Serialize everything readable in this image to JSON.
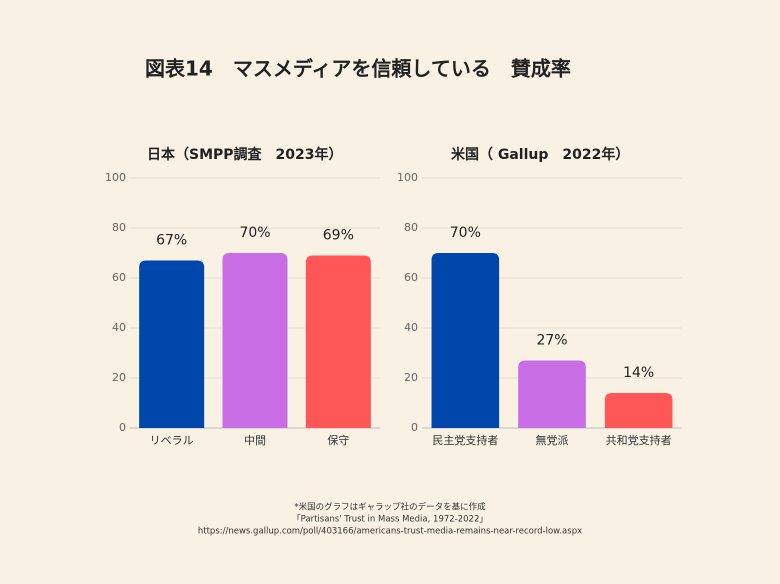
{
  "title": "図表14　マスメディアを信頼している　賛成率",
  "notes": [
    "*米国のグラフはギャラップ社のデータを基に作成",
    "「Partisans' Trust in Mass Media, 1972-2022」",
    "https://news.gallup.com/poll/403166/americans-trust-media-remains-near-record-low.aspx"
  ],
  "chart_data": [
    {
      "type": "bar",
      "title": "日本（SMPP調査　2023年）",
      "categories": [
        "リベラル",
        "中間",
        "保守"
      ],
      "values": [
        67,
        70,
        69
      ],
      "value_labels": [
        "67%",
        "70%",
        "69%"
      ],
      "colors": [
        "#0047ab",
        "#c86de3",
        "#ff5757"
      ],
      "ylim": [
        0,
        100
      ],
      "yticks": [
        0,
        20,
        40,
        60,
        80,
        100
      ],
      "grid": true
    },
    {
      "type": "bar",
      "title": "米国（ Gallup　2022年）",
      "categories": [
        "民主党支持者",
        "無党派",
        "共和党支持者"
      ],
      "values": [
        70,
        27,
        14
      ],
      "value_labels": [
        "70%",
        "27%",
        "14%"
      ],
      "colors": [
        "#0047ab",
        "#c86de3",
        "#ff5757"
      ],
      "ylim": [
        0,
        100
      ],
      "yticks": [
        0,
        20,
        40,
        60,
        80,
        100
      ],
      "grid": true
    }
  ]
}
